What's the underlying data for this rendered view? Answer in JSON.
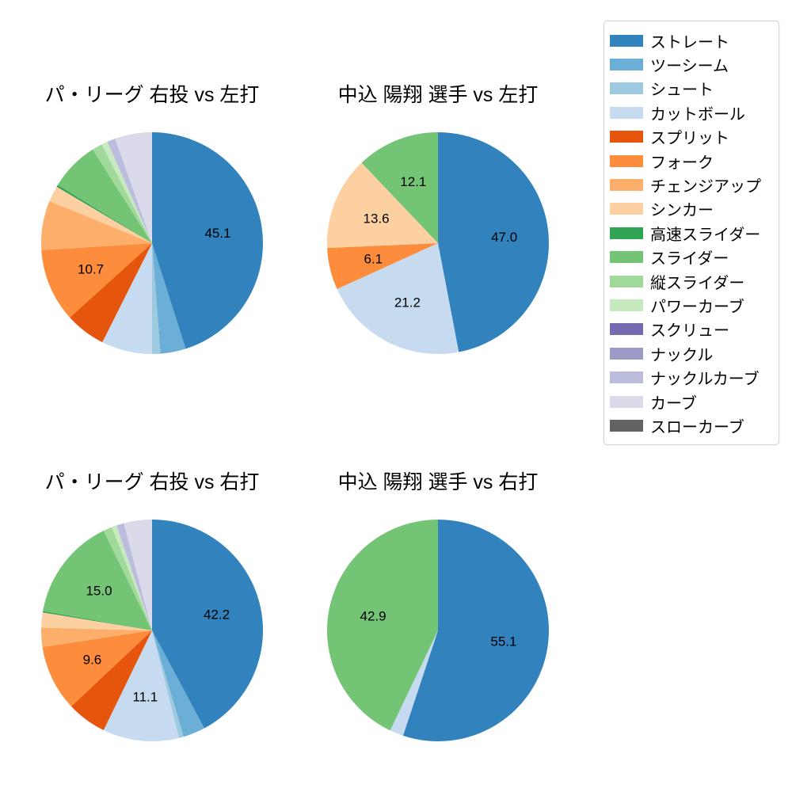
{
  "page": {
    "background": "#ffffff"
  },
  "legend": {
    "items": [
      {
        "label": "ストレート",
        "color": "#3182bd"
      },
      {
        "label": "ツーシーム",
        "color": "#6baed6"
      },
      {
        "label": "シュート",
        "color": "#9ecae1"
      },
      {
        "label": "カットボール",
        "color": "#c6dbef"
      },
      {
        "label": "スプリット",
        "color": "#e6550d"
      },
      {
        "label": "フォーク",
        "color": "#fd8d3c"
      },
      {
        "label": "チェンジアップ",
        "color": "#fdae6b"
      },
      {
        "label": "シンカー",
        "color": "#fdd0a2"
      },
      {
        "label": "高速スライダー",
        "color": "#31a354"
      },
      {
        "label": "スライダー",
        "color": "#74c476"
      },
      {
        "label": "縦スライダー",
        "color": "#a1d99b"
      },
      {
        "label": "パワーカーブ",
        "color": "#c7e9c0"
      },
      {
        "label": "スクリュー",
        "color": "#756bb1"
      },
      {
        "label": "ナックル",
        "color": "#9e9ac8"
      },
      {
        "label": "ナックルカーブ",
        "color": "#bcbddc"
      },
      {
        "label": "カーブ",
        "color": "#dadaeb"
      },
      {
        "label": "スローカーブ",
        "color": "#636363"
      }
    ]
  },
  "chart_data": [
    {
      "type": "pie",
      "title": "パ・リーグ 右投 vs 左打",
      "start_angle": "top",
      "direction": "clockwise",
      "label_distance": 0.6,
      "slices": [
        {
          "name": "ストレート",
          "value": 45.1,
          "label": "45.1"
        },
        {
          "name": "ツーシーム",
          "value": 3.7,
          "label": null
        },
        {
          "name": "シュート",
          "value": 1.2,
          "label": null
        },
        {
          "name": "カットボール",
          "value": 7.4,
          "label": null
        },
        {
          "name": "スプリット",
          "value": 5.9,
          "label": null
        },
        {
          "name": "フォーク",
          "value": 10.7,
          "label": "10.7"
        },
        {
          "name": "チェンジアップ",
          "value": 7.2,
          "label": null
        },
        {
          "name": "シンカー",
          "value": 2.3,
          "label": null
        },
        {
          "name": "高速スライダー",
          "value": 0.3,
          "label": null
        },
        {
          "name": "スライダー",
          "value": 7.2,
          "label": null
        },
        {
          "name": "縦スライダー",
          "value": 1.5,
          "label": null
        },
        {
          "name": "パワーカーブ",
          "value": 0.9,
          "label": null
        },
        {
          "name": "ナックルカーブ",
          "value": 1.2,
          "label": null
        },
        {
          "name": "カーブ",
          "value": 5.4,
          "label": null
        }
      ]
    },
    {
      "type": "pie",
      "title": "中込 陽翔 選手 vs 左打",
      "start_angle": "top",
      "direction": "clockwise",
      "label_distance": 0.6,
      "slices": [
        {
          "name": "ストレート",
          "value": 47.0,
          "label": "47.0"
        },
        {
          "name": "カットボール",
          "value": 21.2,
          "label": "21.2"
        },
        {
          "name": "フォーク",
          "value": 6.1,
          "label": "6.1"
        },
        {
          "name": "シンカー",
          "value": 13.6,
          "label": "13.6"
        },
        {
          "name": "スライダー",
          "value": 12.1,
          "label": "12.1"
        }
      ]
    },
    {
      "type": "pie",
      "title": "パ・リーグ 右投 vs 右打",
      "start_angle": "top",
      "direction": "clockwise",
      "label_distance": 0.6,
      "slices": [
        {
          "name": "ストレート",
          "value": 42.2,
          "label": "42.2"
        },
        {
          "name": "ツーシーム",
          "value": 3.2,
          "label": null
        },
        {
          "name": "シュート",
          "value": 0.7,
          "label": null
        },
        {
          "name": "カットボール",
          "value": 11.1,
          "label": "11.1"
        },
        {
          "name": "スプリット",
          "value": 5.8,
          "label": null
        },
        {
          "name": "フォーク",
          "value": 9.6,
          "label": "9.6"
        },
        {
          "name": "チェンジアップ",
          "value": 2.8,
          "label": null
        },
        {
          "name": "シンカー",
          "value": 2.2,
          "label": null
        },
        {
          "name": "高速スライダー",
          "value": 0.2,
          "label": null
        },
        {
          "name": "スライダー",
          "value": 15.0,
          "label": "15.0"
        },
        {
          "name": "縦スライダー",
          "value": 1.3,
          "label": null
        },
        {
          "name": "パワーカーブ",
          "value": 0.7,
          "label": null
        },
        {
          "name": "ナックルカーブ",
          "value": 1.1,
          "label": null
        },
        {
          "name": "カーブ",
          "value": 4.1,
          "label": null
        }
      ]
    },
    {
      "type": "pie",
      "title": "中込 陽翔 選手 vs 右打",
      "start_angle": "top",
      "direction": "clockwise",
      "label_distance": 0.6,
      "slices": [
        {
          "name": "ストレート",
          "value": 55.1,
          "label": "55.1"
        },
        {
          "name": "カットボール",
          "value": 2.0,
          "label": null
        },
        {
          "name": "スライダー",
          "value": 42.9,
          "label": "42.9"
        }
      ]
    }
  ]
}
